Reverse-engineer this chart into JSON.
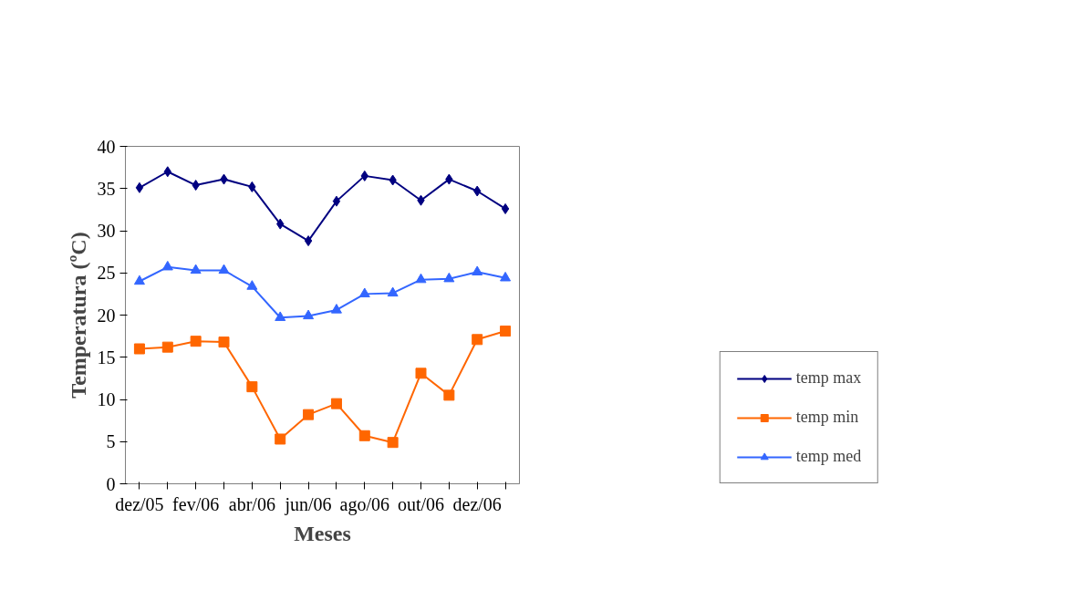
{
  "chart_data": {
    "type": "line",
    "xlabel": "Meses",
    "ylabel": "Temperatura (ºC)",
    "categories": [
      "dez/05",
      null,
      "fev/06",
      null,
      "abr/06",
      null,
      "jun/06",
      null,
      "ago/06",
      null,
      "out/06",
      null,
      "dez/06",
      null
    ],
    "series": [
      {
        "name": "temp max",
        "color": "#000080",
        "marker": "diamond",
        "values": [
          35.1,
          37.0,
          35.4,
          36.1,
          35.2,
          30.8,
          28.8,
          33.5,
          36.5,
          36.0,
          33.6,
          36.1,
          34.7,
          32.6
        ]
      },
      {
        "name": "temp min",
        "color": "#ff6600",
        "marker": "square",
        "values": [
          16.0,
          16.2,
          16.9,
          16.8,
          11.5,
          5.3,
          8.2,
          9.5,
          5.7,
          4.9,
          13.1,
          10.5,
          17.1,
          18.1
        ]
      },
      {
        "name": "temp med",
        "color": "#3366ff",
        "marker": "triangle",
        "values": [
          24.0,
          25.7,
          25.3,
          25.3,
          23.4,
          19.7,
          19.9,
          20.6,
          22.5,
          22.6,
          24.2,
          24.3,
          25.1,
          24.4
        ]
      }
    ],
    "ylim": [
      0,
      40
    ],
    "yticks": [
      0,
      5,
      10,
      15,
      20,
      25,
      30,
      35,
      40
    ],
    "grid": false,
    "legend": "bottom right",
    "line_style": "solid"
  }
}
